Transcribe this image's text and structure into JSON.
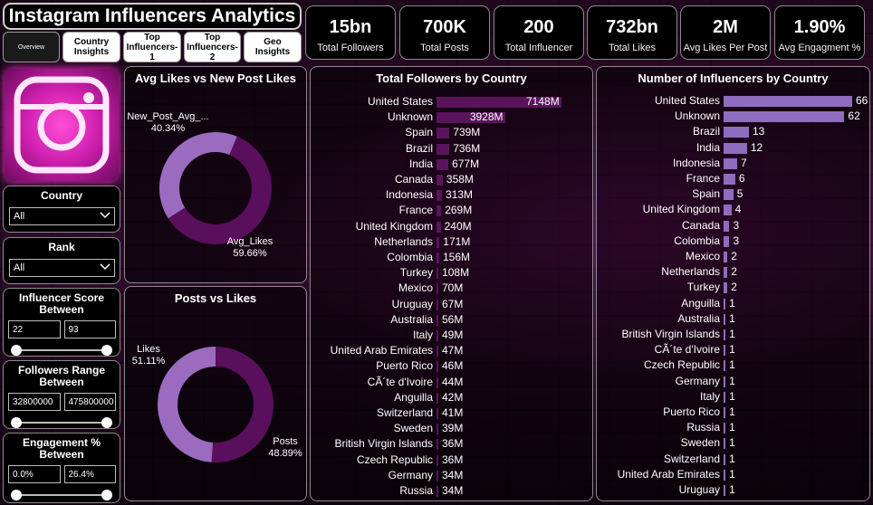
{
  "header": {
    "title": "Instagram Influencers Analytics"
  },
  "nav": [
    {
      "label": "Overview",
      "active": true
    },
    {
      "label": "Country\nInsights",
      "active": false
    },
    {
      "label": "Top\nInfluencers-1",
      "active": false
    },
    {
      "label": "Top\nInfluencers-2",
      "active": false
    },
    {
      "label": "Geo Insights",
      "active": false
    }
  ],
  "kpis": [
    {
      "value": "15bn",
      "label": "Total Followers"
    },
    {
      "value": "700K",
      "label": "Total Posts"
    },
    {
      "value": "200",
      "label": "Total Influencer"
    },
    {
      "value": "732bn",
      "label": "Total Likes"
    },
    {
      "value": "2M",
      "label": "Avg Likes Per Post"
    },
    {
      "value": "1.90%",
      "label": "Avg Engagment %"
    }
  ],
  "filters": {
    "country": {
      "title": "Country",
      "value": "All"
    },
    "rank": {
      "title": "Rank",
      "value": "All"
    },
    "influencer_score": {
      "title": "Influencer Score\nBetween",
      "min": "22",
      "max": "93"
    },
    "followers_range": {
      "title": "Followers Range\nBetween",
      "min": "32800000",
      "max": "475800000"
    },
    "engagement": {
      "title": "Engagement %\nBetween",
      "min": "0.0%",
      "max": "26.4%"
    }
  },
  "colors": {
    "accent_dark": "#5a0f5c",
    "accent_light": "#9a6bbf",
    "bar_followers": "#5a145c",
    "bar_influencers": "#8f6cc0"
  },
  "chart_data": [
    {
      "type": "pie",
      "title": "Avg Likes vs New Post Likes",
      "labels": [
        "New_Post_Avg_...",
        "Avg_Likes"
      ],
      "display_values": [
        "40.34%",
        "59.66%"
      ],
      "values": [
        40.34,
        59.66
      ]
    },
    {
      "type": "pie",
      "title": "Posts vs Likes",
      "labels": [
        "Likes",
        "Posts"
      ],
      "display_values": [
        "51.11%",
        "48.89%"
      ],
      "values": [
        51.11,
        48.89
      ]
    },
    {
      "type": "bar",
      "title": "Total Followers by Country",
      "categories": [
        "United States",
        "Unknown",
        "Spain",
        "Brazil",
        "India",
        "Canada",
        "Indonesia",
        "France",
        "United Kingdom",
        "Netherlands",
        "Colombia",
        "Turkey",
        "Mexico",
        "Uruguay",
        "Australia",
        "Italy",
        "United Arab Emirates",
        "Puerto Rico",
        "CÃ´te d'Ivoire",
        "Anguilla",
        "Switzerland",
        "Sweden",
        "British Virgin Islands",
        "Czech Republic",
        "Germany",
        "Russia"
      ],
      "values": [
        7148,
        3928,
        739,
        736,
        677,
        358,
        313,
        269,
        240,
        171,
        156,
        108,
        70,
        67,
        56,
        49,
        47,
        46,
        44,
        42,
        41,
        39,
        36,
        36,
        34,
        34
      ],
      "labels": [
        "7148M",
        "3928M",
        "739M",
        "736M",
        "677M",
        "358M",
        "313M",
        "269M",
        "240M",
        "171M",
        "156M",
        "108M",
        "70M",
        "67M",
        "56M",
        "49M",
        "47M",
        "46M",
        "44M",
        "42M",
        "41M",
        "39M",
        "36M",
        "36M",
        "34M",
        "34M"
      ]
    },
    {
      "type": "bar",
      "title": "Number of Influencers by Country",
      "categories": [
        "United States",
        "Unknown",
        "Brazil",
        "India",
        "Indonesia",
        "France",
        "Spain",
        "United Kingdom",
        "Canada",
        "Colombia",
        "Mexico",
        "Netherlands",
        "Turkey",
        "Anguilla",
        "Australia",
        "British Virgin Islands",
        "CÃ´te d'Ivoire",
        "Czech Republic",
        "Germany",
        "Italy",
        "Puerto Rico",
        "Russia",
        "Sweden",
        "Switzerland",
        "United Arab Emirates",
        "Uruguay"
      ],
      "values": [
        66,
        62,
        13,
        12,
        7,
        6,
        5,
        4,
        3,
        3,
        2,
        2,
        2,
        1,
        1,
        1,
        1,
        1,
        1,
        1,
        1,
        1,
        1,
        1,
        1,
        1
      ]
    }
  ]
}
